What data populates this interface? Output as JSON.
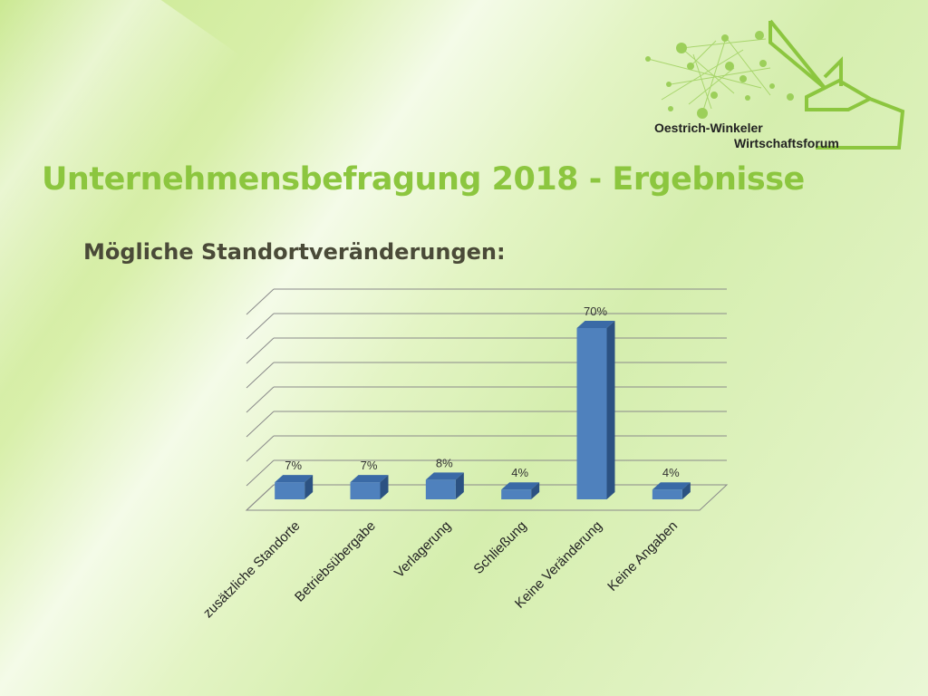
{
  "slide": {
    "title": "Unternehmensbefragung 2018 - Ergebnisse",
    "subtitle": "Mögliche Standortveränderungen:"
  },
  "logo": {
    "line1": "Oestrich-Winkeler",
    "line2": "Wirtschaftsforum",
    "icon": "network-and-house-outline-icon"
  },
  "colors": {
    "title": "#8cc63f",
    "subtitle": "#4a4a38",
    "bar_front": "#4f81bd",
    "bar_side": "#2c5282",
    "bar_top": "#3a6aa6",
    "grid": "#8a8a8a"
  },
  "chart_data": {
    "type": "bar",
    "style": "3d-clustered-column",
    "categories": [
      "zusätzliche Standorte",
      "Betriebsübergabe",
      "Verlagerung",
      "Schließung",
      "Keine Veränderung",
      "Keine Angaben"
    ],
    "values": [
      7,
      7,
      8,
      4,
      70,
      4
    ],
    "data_labels": [
      "7%",
      "7%",
      "8%",
      "4%",
      "70%",
      "4%"
    ],
    "ylim": [
      0,
      80
    ],
    "grid": true,
    "legend": "none"
  }
}
